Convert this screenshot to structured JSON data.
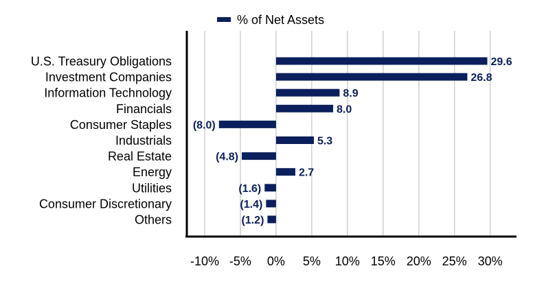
{
  "chart_data": {
    "type": "bar",
    "orientation": "horizontal",
    "categories": [
      "U.S. Treasury Obligations",
      "Investment Companies",
      "Information Technology",
      "Financials",
      "Consumer Staples",
      "Industrials",
      "Real Estate",
      "Energy",
      "Utilities",
      "Consumer Discretionary",
      "Others"
    ],
    "series": [
      {
        "name": "% of Net Assets",
        "values": [
          29.6,
          26.8,
          8.9,
          8.0,
          -8.0,
          5.3,
          -4.8,
          2.7,
          -1.6,
          -1.4,
          -1.2
        ],
        "labels": [
          "29.6",
          "26.8",
          "8.9",
          "8.0",
          "(8.0)",
          "5.3",
          "(4.8)",
          "2.7",
          "(1.6)",
          "(1.4)",
          "(1.2)"
        ]
      }
    ],
    "x_ticks": [
      -10,
      -5,
      0,
      5,
      10,
      15,
      20,
      25,
      30
    ],
    "x_tick_labels": [
      "-10%",
      "-5%",
      "0%",
      "5%",
      "10%",
      "15%",
      "20%",
      "25%",
      "30%"
    ],
    "xlim": [
      -12.5,
      33.5
    ],
    "grid": "vertical",
    "legend_position": "top",
    "title": "",
    "xlabel": "",
    "ylabel": "",
    "colors": {
      "bar": "#0b1f5c",
      "label": "#0b1f5c",
      "grid": "#d0d0d0",
      "axis": "#000000"
    }
  }
}
